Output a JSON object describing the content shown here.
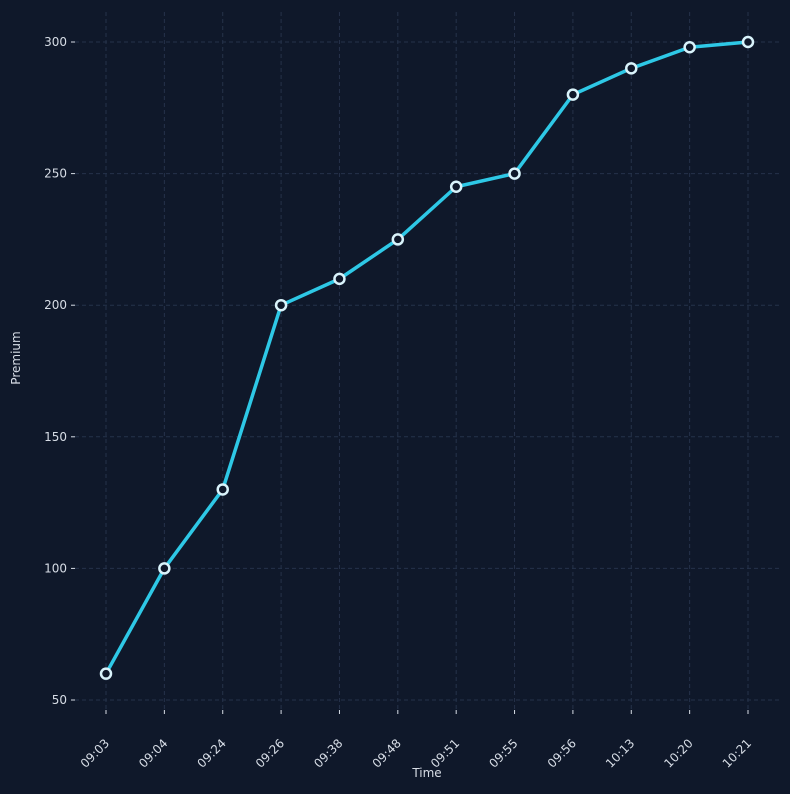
{
  "colors": {
    "background": "#0f182a",
    "line": "#2ec8e6",
    "marker_fill": "#0f182a",
    "marker_edge": "#d9f3fb",
    "grid": "#25324a",
    "text": "#d7dde6"
  },
  "chart_data": {
    "type": "line",
    "title": "",
    "xlabel": "Time",
    "ylabel": "Premium",
    "categories": [
      "09:03",
      "09:04",
      "09:24",
      "09:26",
      "09:38",
      "09:48",
      "09:51",
      "09:55",
      "09:56",
      "10:13",
      "10:20",
      "10:21"
    ],
    "series": [
      {
        "values": [
          60,
          100,
          130,
          200,
          210,
          225,
          245,
          250,
          280,
          290,
          298,
          300
        ]
      }
    ],
    "ylim": [
      50,
      300
    ],
    "yticks": [
      50,
      100,
      150,
      200,
      250,
      300
    ],
    "grid": true,
    "x_tick_rotation_deg": 45
  }
}
